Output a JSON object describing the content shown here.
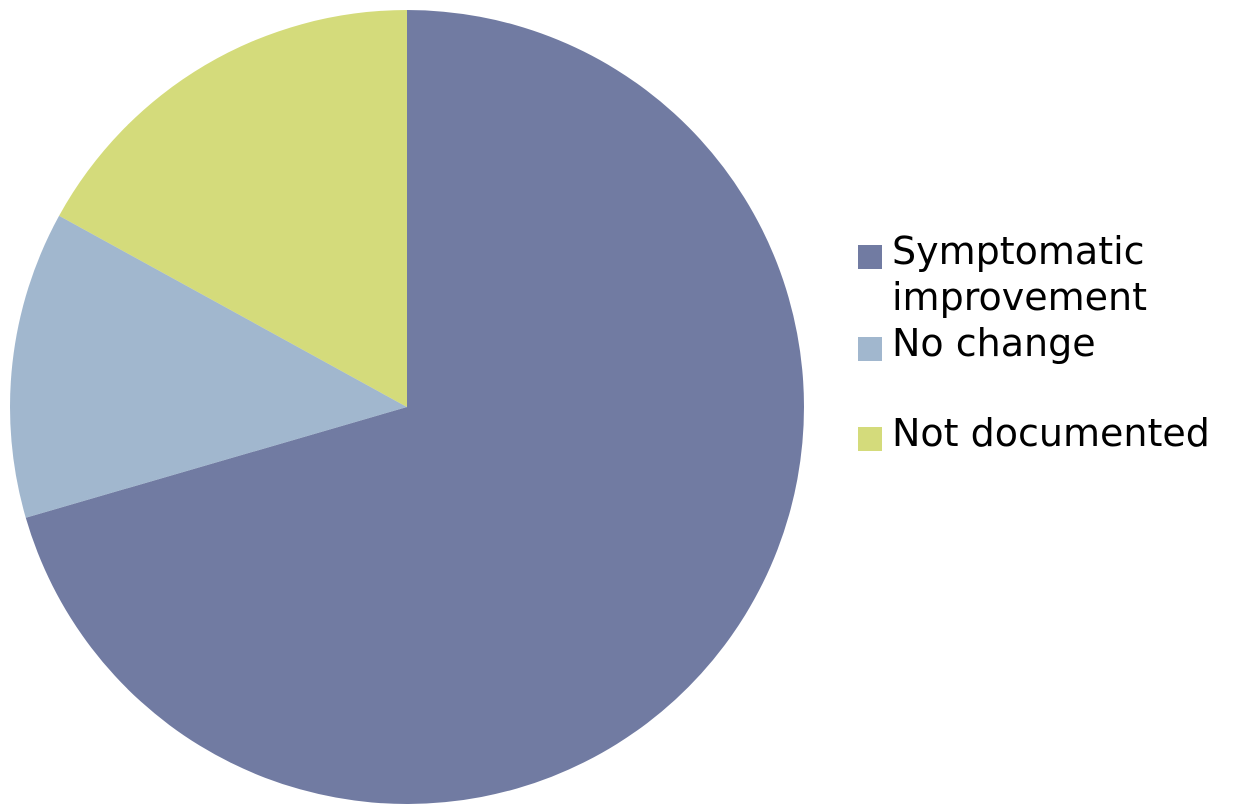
{
  "chart_data": {
    "type": "pie",
    "categories": [
      "Symptomatic improvement",
      "No change",
      "Not documented"
    ],
    "values": [
      70.5,
      12.5,
      17.0
    ],
    "colors": [
      "#717ba2",
      "#a1b7ce",
      "#d4db7b"
    ],
    "legend_position": "right"
  },
  "legend": {
    "items": [
      {
        "label": "Symptomatic improvement",
        "color": "#717ba2"
      },
      {
        "label": "No change",
        "color": "#a1b7ce"
      },
      {
        "label": "Not documented",
        "color": "#d4db7b"
      }
    ]
  }
}
